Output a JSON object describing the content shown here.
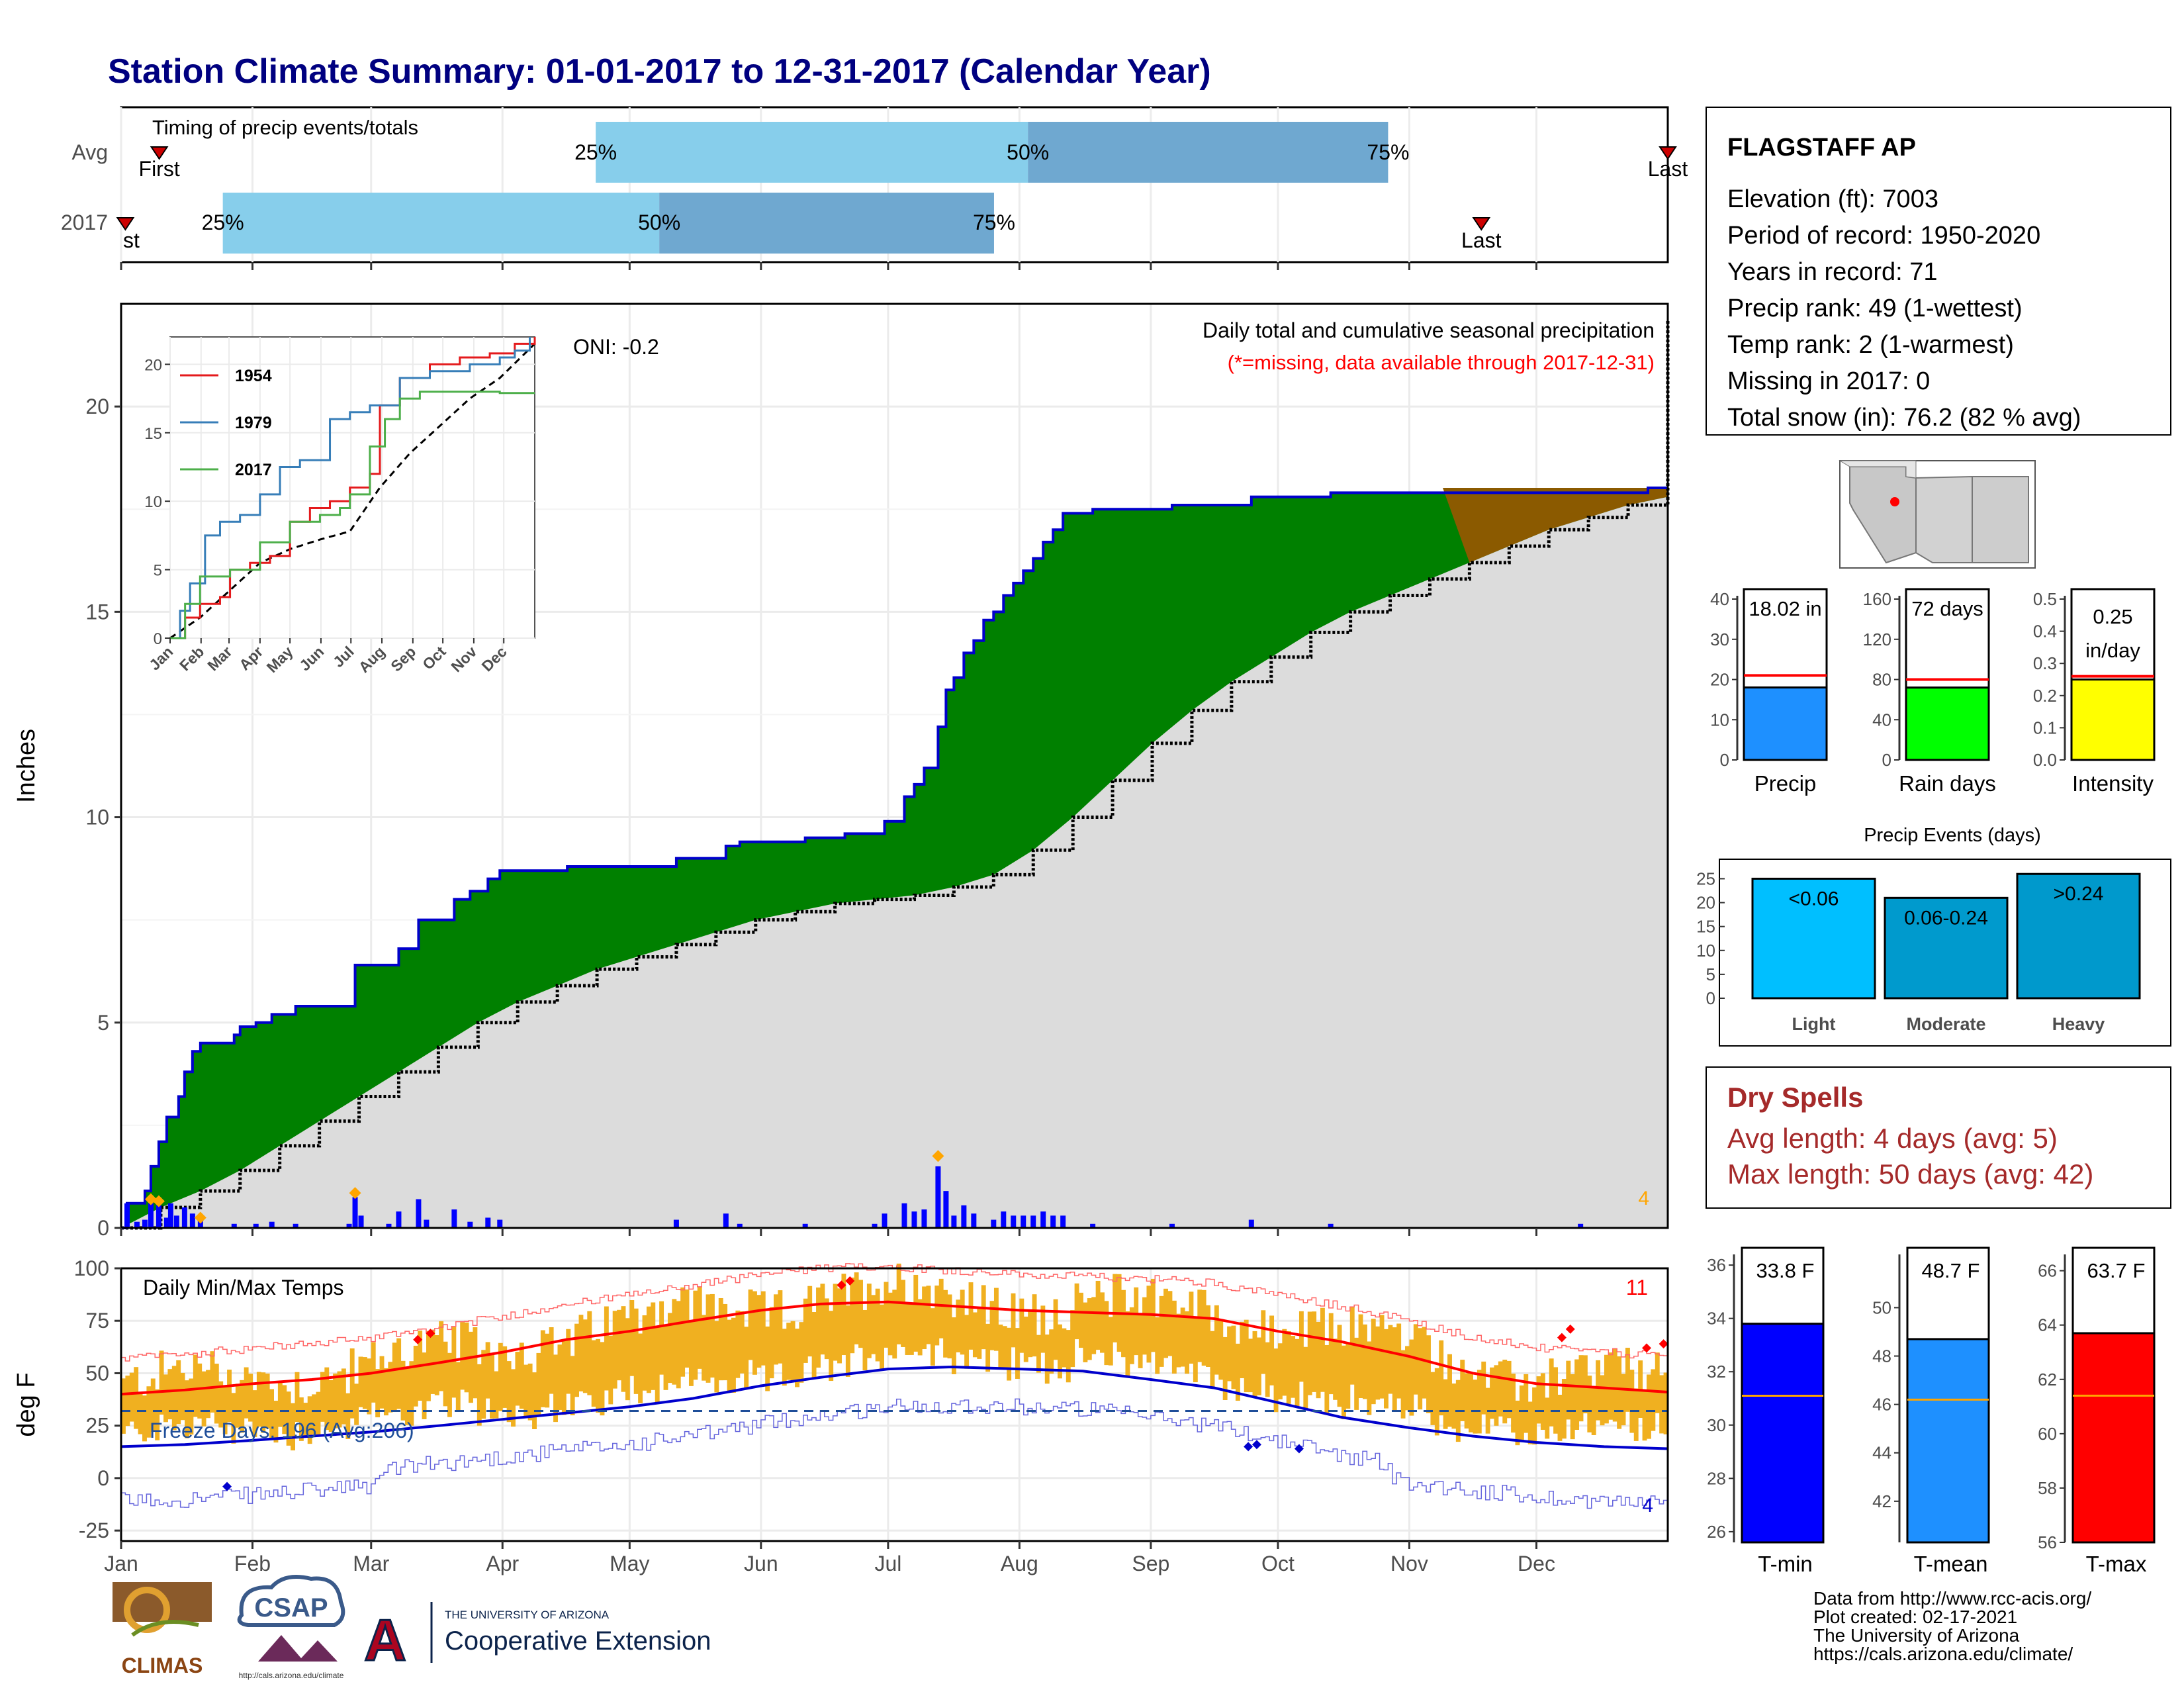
{
  "title": "Station Climate Summary: 01-01-2017 to 12-31-2017 (Calendar Year)",
  "colors": {
    "title": "#000080",
    "light_blue": "#87ceeb",
    "mid_blue": "#6fa8d0",
    "green": "#008000",
    "brown": "#8b5a00",
    "gray_fill": "#dcdcdc",
    "blue_bar": "#0000ff",
    "precip_bar": "#1e90ff",
    "raindays_bar": "#00ff00",
    "intensity_bar": "#ffff00",
    "light_event": "#00bfff",
    "moderate_event": "#009acd",
    "heavy_event": "#0099cc",
    "temp_range": "#f0b020",
    "tmin_bar": "#0000ff",
    "tmean_bar": "#1e90ff",
    "tmax_bar": "#ff0000",
    "dry_spell_text": "#a52a2a",
    "red": "#ff0000",
    "orange": "#ffa500"
  },
  "months": [
    "Jan",
    "Feb",
    "Mar",
    "Apr",
    "May",
    "Jun",
    "Jul",
    "Aug",
    "Sep",
    "Oct",
    "Nov",
    "Dec"
  ],
  "timing": {
    "label": "Timing of precip events/totals",
    "rows": [
      "Avg",
      "2017"
    ],
    "pct_labels": [
      "25%",
      "50%",
      "75%"
    ],
    "first_label": "First",
    "last_label": "Last",
    "first_label_2017_visible": "st",
    "avg": {
      "first_day": 9,
      "p25": 112,
      "p50": 214,
      "p75": 299,
      "last_day": 365
    },
    "y2017": {
      "first_day": 0,
      "p25": 24,
      "p50": 127,
      "p75": 206,
      "last_day": 321
    }
  },
  "precip": {
    "ylabel": "Inches",
    "yticks": [
      "0",
      "5",
      "10",
      "15",
      "20"
    ],
    "ylim": [
      0,
      22.5
    ],
    "subtitle": "Daily total and cumulative seasonal precipitation",
    "missing_note": "(*=missing, data available through 2017-12-31)",
    "oni": "ONI: -0.2",
    "count_label": "4",
    "observed_cumulative": [
      [
        0,
        0
      ],
      [
        3,
        0.6
      ],
      [
        12,
        0.9
      ],
      [
        15,
        1.5
      ],
      [
        19,
        2.1
      ],
      [
        23,
        2.7
      ],
      [
        29,
        3.2
      ],
      [
        32,
        3.8
      ],
      [
        36,
        4.3
      ],
      [
        40,
        4.5
      ],
      [
        53,
        4.5
      ],
      [
        57,
        4.7
      ],
      [
        60,
        4.9
      ],
      [
        68,
        5.0
      ],
      [
        76,
        5.2
      ],
      [
        88,
        5.4
      ],
      [
        115,
        5.4
      ],
      [
        118,
        6.4
      ],
      [
        135,
        6.4
      ],
      [
        140,
        6.8
      ],
      [
        150,
        7.5
      ],
      [
        164,
        7.5
      ],
      [
        168,
        8.0
      ],
      [
        176,
        8.2
      ],
      [
        185,
        8.5
      ],
      [
        191,
        8.7
      ],
      [
        225,
        8.8
      ],
      [
        270,
        8.8
      ],
      [
        280,
        9.0
      ],
      [
        305,
        9.3
      ],
      [
        312,
        9.4
      ],
      [
        330,
        9.4
      ],
      [
        345,
        9.5
      ],
      [
        365,
        9.6
      ],
      [
        380,
        9.6
      ],
      [
        385,
        9.9
      ],
      [
        395,
        10.5
      ],
      [
        400,
        10.8
      ],
      [
        405,
        11.2
      ],
      [
        412,
        12.2
      ],
      [
        416,
        13.1
      ],
      [
        420,
        13.4
      ],
      [
        425,
        14.0
      ],
      [
        430,
        14.3
      ],
      [
        435,
        14.8
      ],
      [
        440,
        15.0
      ],
      [
        445,
        15.4
      ],
      [
        450,
        15.7
      ],
      [
        455,
        16.0
      ],
      [
        460,
        16.3
      ],
      [
        465,
        16.7
      ],
      [
        470,
        17.0
      ],
      [
        475,
        17.4
      ],
      [
        490,
        17.5
      ],
      [
        530,
        17.6
      ],
      [
        570,
        17.8
      ],
      [
        600,
        17.8
      ],
      [
        610,
        17.9
      ],
      [
        700,
        17.9
      ],
      [
        736,
        17.9
      ],
      [
        770,
        18.02
      ],
      [
        780,
        18.02
      ]
    ],
    "normal_cumulative": [
      [
        0,
        0
      ],
      [
        20,
        0.5
      ],
      [
        40,
        0.9
      ],
      [
        60,
        1.4
      ],
      [
        80,
        2.0
      ],
      [
        100,
        2.6
      ],
      [
        120,
        3.2
      ],
      [
        140,
        3.8
      ],
      [
        160,
        4.4
      ],
      [
        180,
        5.0
      ],
      [
        200,
        5.5
      ],
      [
        220,
        5.9
      ],
      [
        240,
        6.3
      ],
      [
        260,
        6.6
      ],
      [
        280,
        6.9
      ],
      [
        300,
        7.2
      ],
      [
        320,
        7.5
      ],
      [
        340,
        7.7
      ],
      [
        360,
        7.9
      ],
      [
        380,
        8.0
      ],
      [
        400,
        8.1
      ],
      [
        420,
        8.3
      ],
      [
        440,
        8.6
      ],
      [
        460,
        9.2
      ],
      [
        480,
        10.0
      ],
      [
        500,
        10.9
      ],
      [
        520,
        11.8
      ],
      [
        540,
        12.6
      ],
      [
        560,
        13.3
      ],
      [
        580,
        13.9
      ],
      [
        600,
        14.5
      ],
      [
        620,
        15.0
      ],
      [
        640,
        15.4
      ],
      [
        660,
        15.8
      ],
      [
        680,
        16.2
      ],
      [
        700,
        16.6
      ],
      [
        720,
        17.0
      ],
      [
        740,
        17.3
      ],
      [
        760,
        17.6
      ],
      [
        780,
        17.8
      ],
      [
        800,
        18.0
      ],
      [
        820,
        18.3
      ],
      [
        840,
        18.5
      ],
      [
        860,
        18.8
      ],
      [
        880,
        19.2
      ],
      [
        900,
        19.6
      ],
      [
        920,
        20.0
      ],
      [
        940,
        20.4
      ],
      [
        960,
        20.8
      ],
      [
        980,
        21.2
      ],
      [
        1000,
        21.5
      ],
      [
        1020,
        21.8
      ],
      [
        1040,
        22.1
      ]
    ],
    "daily": [
      [
        3,
        0.6
      ],
      [
        8,
        0.15
      ],
      [
        12,
        0.2
      ],
      [
        15,
        0.6
      ],
      [
        19,
        0.55
      ],
      [
        23,
        0.25
      ],
      [
        25,
        0.6
      ],
      [
        28,
        0.3
      ],
      [
        32,
        0.5
      ],
      [
        36,
        0.35
      ],
      [
        40,
        0.25
      ],
      [
        57,
        0.1
      ],
      [
        68,
        0.1
      ],
      [
        76,
        0.15
      ],
      [
        88,
        0.1
      ],
      [
        115,
        0.1
      ],
      [
        118,
        0.75
      ],
      [
        121,
        0.3
      ],
      [
        135,
        0.1
      ],
      [
        140,
        0.4
      ],
      [
        150,
        0.7
      ],
      [
        154,
        0.2
      ],
      [
        168,
        0.45
      ],
      [
        176,
        0.15
      ],
      [
        185,
        0.25
      ],
      [
        191,
        0.2
      ],
      [
        280,
        0.2
      ],
      [
        305,
        0.35
      ],
      [
        312,
        0.1
      ],
      [
        345,
        0.1
      ],
      [
        380,
        0.1
      ],
      [
        385,
        0.35
      ],
      [
        395,
        0.6
      ],
      [
        400,
        0.4
      ],
      [
        405,
        0.45
      ],
      [
        412,
        1.5
      ],
      [
        416,
        0.9
      ],
      [
        420,
        0.3
      ],
      [
        425,
        0.55
      ],
      [
        430,
        0.35
      ],
      [
        440,
        0.2
      ],
      [
        445,
        0.4
      ],
      [
        450,
        0.3
      ],
      [
        455,
        0.3
      ],
      [
        460,
        0.3
      ],
      [
        465,
        0.4
      ],
      [
        470,
        0.3
      ],
      [
        475,
        0.3
      ],
      [
        490,
        0.1
      ],
      [
        530,
        0.1
      ],
      [
        570,
        0.2
      ],
      [
        610,
        0.1
      ],
      [
        736,
        0.1
      ]
    ],
    "daily_max_markers": [
      [
        15,
        0.7
      ],
      [
        19,
        0.65
      ],
      [
        40,
        0.25
      ],
      [
        118,
        0.85
      ],
      [
        412,
        1.75
      ]
    ]
  },
  "inset": {
    "yticks": [
      "0",
      "5",
      "10",
      "15",
      "20"
    ],
    "legend": [
      {
        "name": "1954",
        "color": "#e41a1c"
      },
      {
        "name": "1979",
        "color": "#377eb8"
      },
      {
        "name": "2017",
        "color": "#4daf4a"
      }
    ],
    "series_1954": [
      [
        0,
        0
      ],
      [
        15,
        1.5
      ],
      [
        30,
        2.5
      ],
      [
        50,
        3.0
      ],
      [
        60,
        5.0
      ],
      [
        80,
        5.5
      ],
      [
        100,
        6.0
      ],
      [
        120,
        8.5
      ],
      [
        140,
        9.5
      ],
      [
        160,
        10.0
      ],
      [
        180,
        11.0
      ],
      [
        200,
        12.0
      ],
      [
        210,
        17.0
      ],
      [
        230,
        19.0
      ],
      [
        260,
        20.0
      ],
      [
        290,
        20.5
      ],
      [
        320,
        20.8
      ],
      [
        345,
        21.5
      ],
      [
        365,
        22.0
      ]
    ],
    "series_1979": [
      [
        0,
        0
      ],
      [
        10,
        2.0
      ],
      [
        20,
        4.0
      ],
      [
        35,
        7.5
      ],
      [
        50,
        8.5
      ],
      [
        70,
        9.0
      ],
      [
        90,
        10.5
      ],
      [
        110,
        12.5
      ],
      [
        130,
        13.0
      ],
      [
        150,
        13.0
      ],
      [
        160,
        16.0
      ],
      [
        180,
        16.5
      ],
      [
        200,
        17.0
      ],
      [
        230,
        19.0
      ],
      [
        260,
        19.5
      ],
      [
        300,
        20.0
      ],
      [
        330,
        20.5
      ],
      [
        345,
        21.0
      ],
      [
        360,
        22.0
      ]
    ],
    "series_2017": [
      [
        0,
        0
      ],
      [
        15,
        2.5
      ],
      [
        30,
        4.5
      ],
      [
        60,
        5.0
      ],
      [
        90,
        7.0
      ],
      [
        120,
        8.5
      ],
      [
        150,
        9.0
      ],
      [
        170,
        9.5
      ],
      [
        180,
        10.5
      ],
      [
        200,
        14.0
      ],
      [
        215,
        16.0
      ],
      [
        230,
        17.5
      ],
      [
        250,
        18.0
      ],
      [
        300,
        18.0
      ],
      [
        330,
        17.9
      ],
      [
        365,
        17.9
      ]
    ],
    "normal": [
      [
        0,
        0
      ],
      [
        30,
        1.5
      ],
      [
        60,
        3.5
      ],
      [
        90,
        5.5
      ],
      [
        120,
        6.5
      ],
      [
        150,
        7.2
      ],
      [
        180,
        7.8
      ],
      [
        210,
        11.0
      ],
      [
        240,
        13.5
      ],
      [
        270,
        15.5
      ],
      [
        300,
        17.5
      ],
      [
        330,
        19.0
      ],
      [
        365,
        21.5
      ]
    ],
    "month_labels": [
      "Jan",
      "Feb",
      "Mar",
      "Apr",
      "May",
      "Jun",
      "Jul",
      "Aug",
      "Sep",
      "Oct",
      "Nov",
      "Dec"
    ]
  },
  "temp": {
    "ylabel": "deg F",
    "label": "Daily Min/Max Temps",
    "yticks": [
      "100",
      "75",
      "50",
      "25",
      "0",
      "-25"
    ],
    "ylim": [
      -30,
      100
    ],
    "freeze_label": "Freeze Days: 196 (Avg:206)",
    "freeze_line": 32,
    "red_count": "11",
    "blue_count": "4",
    "normal_max": [
      [
        0,
        40
      ],
      [
        15,
        42
      ],
      [
        31,
        45
      ],
      [
        45,
        47
      ],
      [
        59,
        50
      ],
      [
        75,
        55
      ],
      [
        90,
        60
      ],
      [
        105,
        66
      ],
      [
        120,
        70
      ],
      [
        135,
        75
      ],
      [
        151,
        80
      ],
      [
        165,
        83
      ],
      [
        181,
        84
      ],
      [
        196,
        82
      ],
      [
        212,
        80
      ],
      [
        227,
        79
      ],
      [
        243,
        78
      ],
      [
        258,
        76
      ],
      [
        273,
        70
      ],
      [
        288,
        65
      ],
      [
        304,
        58
      ],
      [
        319,
        50
      ],
      [
        334,
        45
      ],
      [
        350,
        43
      ],
      [
        365,
        41
      ]
    ],
    "normal_min": [
      [
        0,
        15
      ],
      [
        15,
        16
      ],
      [
        31,
        18
      ],
      [
        45,
        20
      ],
      [
        59,
        22
      ],
      [
        75,
        25
      ],
      [
        90,
        28
      ],
      [
        105,
        31
      ],
      [
        120,
        34
      ],
      [
        135,
        38
      ],
      [
        151,
        44
      ],
      [
        165,
        48
      ],
      [
        181,
        52
      ],
      [
        196,
        53
      ],
      [
        212,
        52
      ],
      [
        227,
        51
      ],
      [
        243,
        47
      ],
      [
        258,
        43
      ],
      [
        273,
        36
      ],
      [
        288,
        29
      ],
      [
        304,
        24
      ],
      [
        319,
        20
      ],
      [
        334,
        17
      ],
      [
        350,
        15
      ],
      [
        365,
        14
      ]
    ]
  },
  "station": {
    "name": "FLAGSTAFF AP",
    "lines": [
      "Elevation (ft): 7003",
      "Period of record: 1950-2020",
      "Years in record: 71",
      "Precip rank: 49 (1-wettest)",
      "Temp rank: 2 (1-warmest)",
      "Missing in 2017: 0",
      "Total snow (in): 76.2 (82 % avg)"
    ]
  },
  "summary_bars": {
    "precip": {
      "label": "Precip",
      "value_text": "18.02 in",
      "value": 18.02,
      "avg": 21,
      "ymax": 40,
      "yticks": [
        "0",
        "10",
        "20",
        "30",
        "40"
      ]
    },
    "raindays": {
      "label": "Rain days",
      "value_text": "72 days",
      "value": 72,
      "avg": 80,
      "ymax": 160,
      "yticks": [
        "0",
        "40",
        "80",
        "120",
        "160"
      ]
    },
    "intensity": {
      "label": "Intensity",
      "value_text_1": "0.25",
      "value_text_2": "in/day",
      "value": 0.25,
      "avg": 0.26,
      "ymax": 0.5,
      "yticks": [
        "0.0",
        "0.1",
        "0.2",
        "0.3",
        "0.4",
        "0.5"
      ]
    }
  },
  "events": {
    "title": "Precip Events (days)",
    "yticks": [
      "0",
      "5",
      "10",
      "15",
      "20",
      "25"
    ],
    "ymax": 27,
    "bars": [
      {
        "label": "Light",
        "range": "<0.06",
        "value": 25
      },
      {
        "label": "Moderate",
        "range": "0.06-0.24",
        "value": 21
      },
      {
        "label": "Heavy",
        "range": ">0.24",
        "value": 26
      }
    ]
  },
  "dry_spells": {
    "title": "Dry Spells",
    "avg_line": "Avg length: 4 days (avg: 5)",
    "max_line": "Max length: 50 days (avg: 42)"
  },
  "temp_bars": {
    "tmin": {
      "label": "T-min",
      "value_text": "33.8 F",
      "value": 33.8,
      "avg": 31.1,
      "ymin": 25.6,
      "ymax": 36.4,
      "yticks": [
        "26",
        "28",
        "30",
        "32",
        "34",
        "36"
      ]
    },
    "tmean": {
      "label": "T-mean",
      "value_text": "48.7 F",
      "value": 48.7,
      "avg": 46.2,
      "ymin": 40.3,
      "ymax": 52.2,
      "yticks": [
        "42",
        "44",
        "46",
        "48",
        "50"
      ]
    },
    "tmax": {
      "label": "T-max",
      "value_text": "63.7 F",
      "value": 63.7,
      "avg": 61.4,
      "ymin": 56,
      "ymax": 66.6,
      "yticks": [
        "56",
        "58",
        "60",
        "62",
        "64",
        "66"
      ]
    }
  },
  "footer": {
    "credits": [
      "Data from http://www.rcc-acis.org/",
      "Plot created: 02-17-2021",
      "The University of Arizona",
      "https://cals.arizona.edu/climate/"
    ],
    "logo_climas": "CLIMAS",
    "logo_csap": "CSAP",
    "logo_csap_url": "http://cals.arizona.edu/climate",
    "logo_ua_small": "THE UNIVERSITY OF ARIZONA",
    "logo_ua_big": "Cooperative Extension",
    "logo_ua_letter": "A"
  }
}
